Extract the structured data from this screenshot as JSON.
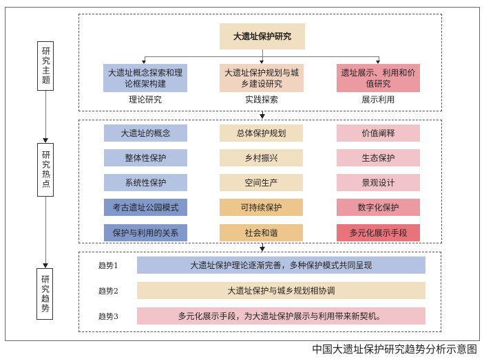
{
  "colors": {
    "blue_light": "#b4c3e2",
    "blue_dark": "#8198ca",
    "beige_light": "#f0dfc0",
    "orange": "#ecc68a",
    "peach": "#f0d4bf",
    "pink_light": "#f0c4c8",
    "pink_mid": "#eb9aa1",
    "red": "#e8737b"
  },
  "side_labels": [
    "研究主题",
    "研究热点",
    "研究趋势"
  ],
  "themes": {
    "root": "大遗址保护研究",
    "children": [
      {
        "label": "大遗址概念探索和理论框架构建",
        "caption": "理论研究"
      },
      {
        "label": "大遗址保护规划与城乡建设研究",
        "caption": "实践探索"
      },
      {
        "label": "遗址展示、利用和价值研究",
        "caption": "展示利用"
      }
    ]
  },
  "hotspots": [
    [
      "大遗址的概念",
      "整体性保护",
      "系统性保护",
      "考古遗址公园模式",
      "保护与利用的关系"
    ],
    [
      "总体保护规划",
      "乡村振兴",
      "空间生产",
      "可持续保护",
      "社会和谐"
    ],
    [
      "价值阐释",
      "生态保护",
      "景观设计",
      "数字化保护",
      "多元化展示手段"
    ]
  ],
  "trends": [
    {
      "label": "趋势1",
      "text": "大遗址保护理论逐渐完善，多种保护模式共同呈现"
    },
    {
      "label": "趋势2",
      "text": "大遗址保护与城乡规划相协调"
    },
    {
      "label": "趋势3",
      "text": "多元化展示手段，为大遗址保护展示与利用带来新契机。"
    }
  ],
  "caption": "中国大遗址保护研究趋势分析示意图"
}
